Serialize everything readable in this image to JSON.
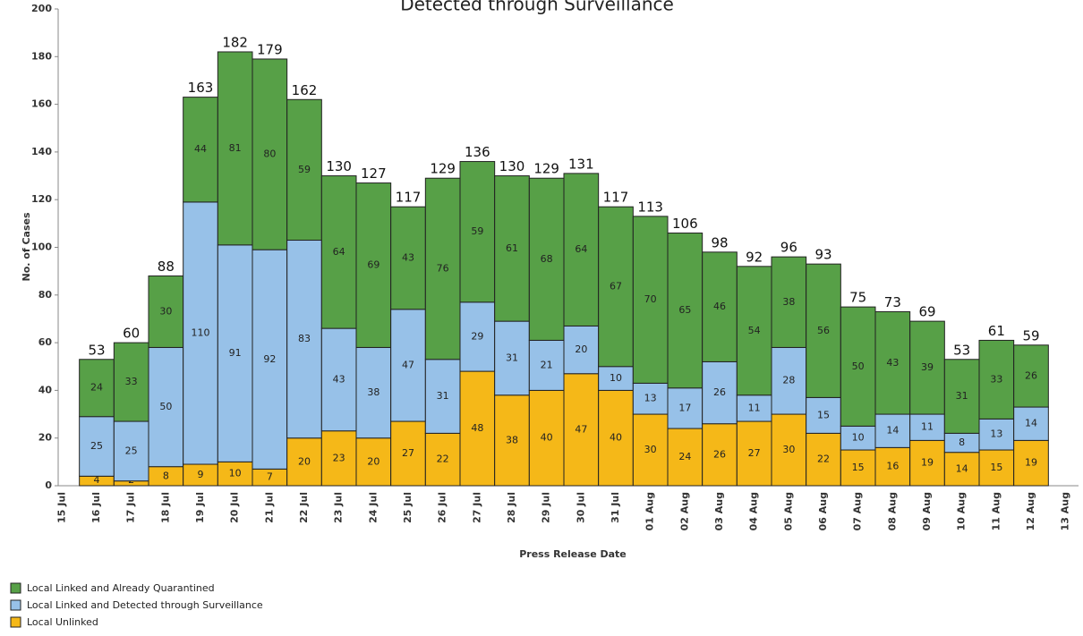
{
  "chart_data": {
    "type": "stacked_bar",
    "title": "Detected through Surveillance",
    "x_label": "Press Release Date",
    "y_label": "No. of Cases",
    "categories": [
      "15 Jul",
      "16 Jul",
      "17 Jul",
      "18 Jul",
      "19 Jul",
      "20 Jul",
      "21 Jul",
      "22 Jul",
      "23 Jul",
      "24 Jul",
      "25 Jul",
      "26 Jul",
      "27 Jul",
      "28 Jul",
      "29 Jul",
      "30 Jul",
      "31 Jul",
      "01 Aug",
      "02 Aug",
      "03 Aug",
      "04 Aug",
      "05 Aug",
      "06 Aug",
      "07 Aug",
      "08 Aug",
      "09 Aug",
      "10 Aug",
      "11 Aug",
      "12 Aug",
      "13 Aug"
    ],
    "series": [
      {
        "name": "Local Linked and Already Quarantined",
        "color": "#57a047",
        "values": [
          null,
          24,
          33,
          30,
          44,
          81,
          80,
          59,
          64,
          69,
          43,
          76,
          59,
          61,
          68,
          64,
          67,
          70,
          65,
          46,
          54,
          38,
          56,
          50,
          43,
          39,
          31,
          33,
          26,
          null
        ]
      },
      {
        "name": "Local Linked and Detected through Surveillance",
        "color": "#97c1e8",
        "values": [
          null,
          25,
          25,
          50,
          110,
          91,
          92,
          83,
          43,
          38,
          47,
          31,
          29,
          31,
          21,
          20,
          10,
          13,
          17,
          26,
          11,
          28,
          15,
          10,
          14,
          11,
          8,
          13,
          14,
          null
        ]
      },
      {
        "name": "Local Unlinked",
        "color": "#f5b818",
        "values": [
          null,
          4,
          2,
          8,
          9,
          10,
          7,
          20,
          23,
          20,
          27,
          22,
          48,
          38,
          40,
          47,
          40,
          30,
          24,
          26,
          27,
          30,
          22,
          15,
          16,
          19,
          14,
          15,
          19,
          null
        ]
      }
    ],
    "totals": [
      null,
      53,
      60,
      88,
      163,
      182,
      179,
      162,
      130,
      127,
      117,
      129,
      136,
      130,
      129,
      131,
      117,
      113,
      106,
      98,
      92,
      96,
      93,
      75,
      73,
      69,
      53,
      61,
      59,
      null
    ],
    "ylim": [
      0,
      200
    ],
    "yticks": [
      0,
      20,
      40,
      60,
      80,
      100,
      120,
      140,
      160,
      180,
      200
    ],
    "grid": false,
    "legend": "bottom-left"
  }
}
